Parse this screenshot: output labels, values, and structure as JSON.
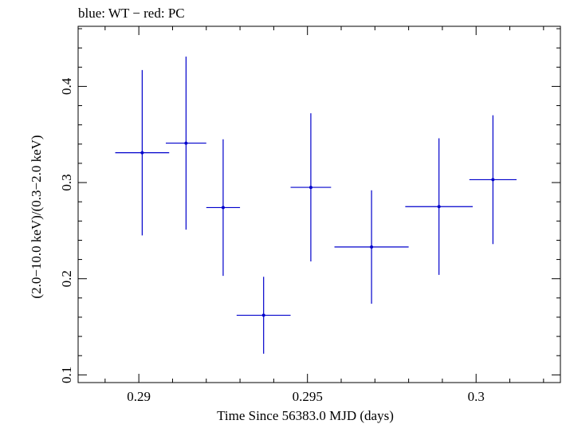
{
  "chart_data": {
    "type": "scatter",
    "title": "blue: WT − red: PC",
    "xlabel": "Time Since 56383.0 MJD (days)",
    "ylabel": "(2.0−10.0 keV)/(0.3−2.0 keV)",
    "xlim": [
      0.2882,
      0.3025
    ],
    "ylim": [
      0.092,
      0.4625
    ],
    "xticks": [
      0.29,
      0.295,
      0.3
    ],
    "xtick_labels": [
      "0.29",
      "0.295",
      "0.3"
    ],
    "yticks": [
      0.1,
      0.2,
      0.3,
      0.4
    ],
    "ytick_labels": [
      "0.1",
      "0.2",
      "0.3",
      "0.4"
    ],
    "grid": false,
    "series": [
      {
        "color": "#0000cc",
        "points": [
          {
            "x": 0.2901,
            "y": 0.331,
            "xerr_low": 0.0008,
            "xerr_high": 0.0008,
            "yerr_low": 0.086,
            "yerr_high": 0.086
          },
          {
            "x": 0.2914,
            "y": 0.341,
            "xerr_low": 0.0006,
            "xerr_high": 0.0006,
            "yerr_low": 0.09,
            "yerr_high": 0.09
          },
          {
            "x": 0.2925,
            "y": 0.274,
            "xerr_low": 0.0005,
            "xerr_high": 0.0005,
            "yerr_low": 0.071,
            "yerr_high": 0.071
          },
          {
            "x": 0.2937,
            "y": 0.162,
            "xerr_low": 0.0008,
            "xerr_high": 0.0008,
            "yerr_low": 0.04,
            "yerr_high": 0.04
          },
          {
            "x": 0.2951,
            "y": 0.295,
            "xerr_low": 0.0006,
            "xerr_high": 0.0006,
            "yerr_low": 0.077,
            "yerr_high": 0.077
          },
          {
            "x": 0.2969,
            "y": 0.233,
            "xerr_low": 0.0011,
            "xerr_high": 0.0011,
            "yerr_low": 0.059,
            "yerr_high": 0.059
          },
          {
            "x": 0.2989,
            "y": 0.275,
            "xerr_low": 0.001,
            "xerr_high": 0.001,
            "yerr_low": 0.071,
            "yerr_high": 0.071
          },
          {
            "x": 0.3005,
            "y": 0.303,
            "xerr_low": 0.0007,
            "xerr_high": 0.0007,
            "yerr_low": 0.067,
            "yerr_high": 0.067
          }
        ]
      }
    ]
  }
}
